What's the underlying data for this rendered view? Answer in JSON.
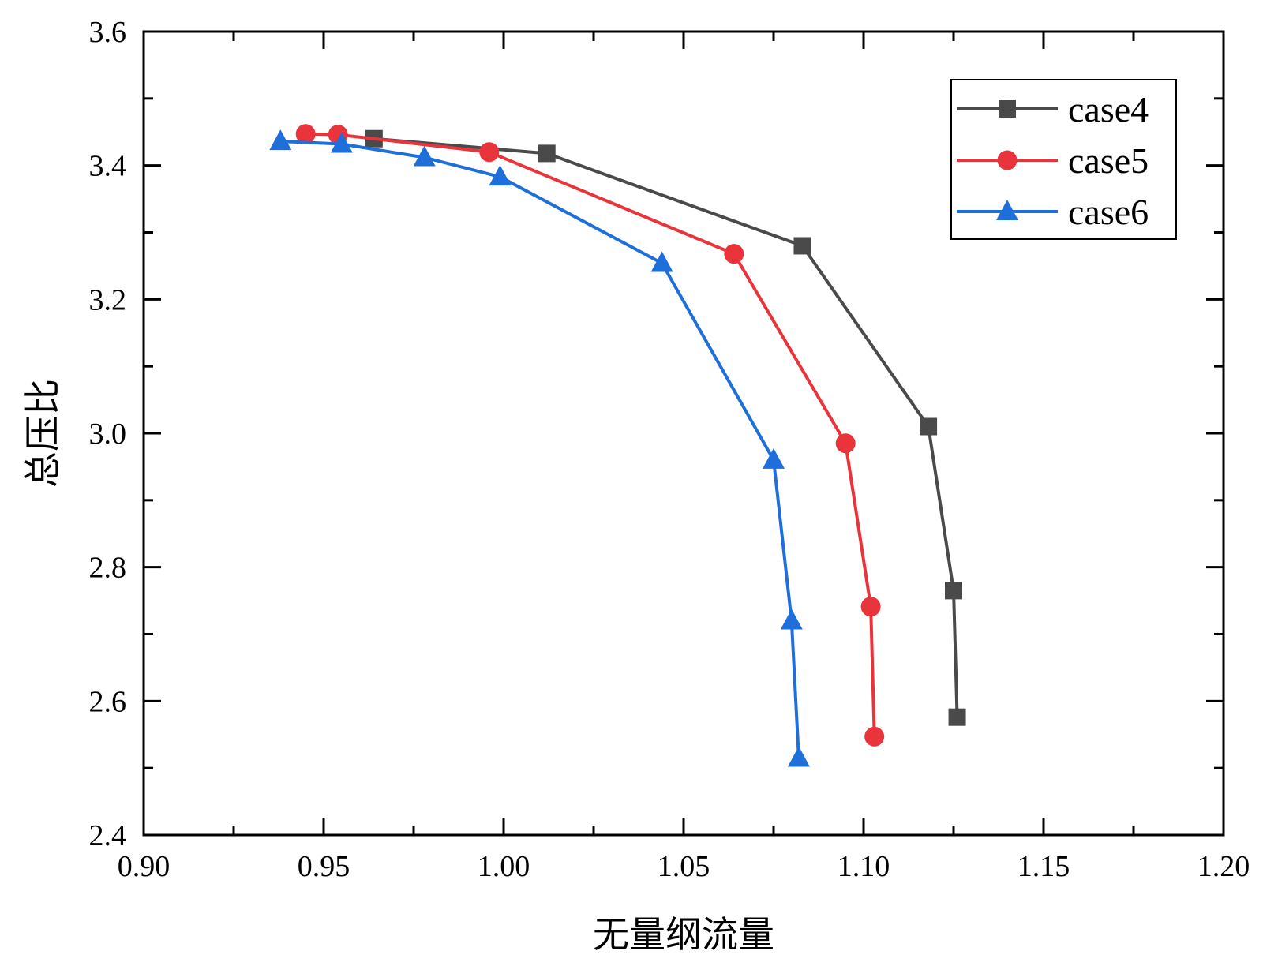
{
  "chart_data": {
    "type": "line",
    "xlabel": "无量纲流量",
    "ylabel": "总压比",
    "xlim": [
      0.9,
      1.2
    ],
    "ylim": [
      2.4,
      3.6
    ],
    "x_ticks": [
      "0.90",
      "0.95",
      "1.00",
      "1.05",
      "1.10",
      "1.15",
      "1.20"
    ],
    "y_ticks": [
      "2.4",
      "2.6",
      "2.8",
      "3.0",
      "3.2",
      "3.4",
      "3.6"
    ],
    "grid": false,
    "legend_position": "top-right",
    "series": [
      {
        "name": "case4",
        "color": "#4a4a4a",
        "marker": "square",
        "points": [
          {
            "x": 0.964,
            "y": 3.44
          },
          {
            "x": 1.012,
            "y": 3.418
          },
          {
            "x": 1.083,
            "y": 3.28
          },
          {
            "x": 1.118,
            "y": 3.01
          },
          {
            "x": 1.125,
            "y": 2.765
          },
          {
            "x": 1.126,
            "y": 2.576
          }
        ]
      },
      {
        "name": "case5",
        "color": "#e8343a",
        "marker": "circle",
        "points": [
          {
            "x": 0.945,
            "y": 3.447
          },
          {
            "x": 0.954,
            "y": 3.446
          },
          {
            "x": 0.996,
            "y": 3.42
          },
          {
            "x": 1.064,
            "y": 3.268
          },
          {
            "x": 1.095,
            "y": 2.985
          },
          {
            "x": 1.102,
            "y": 2.741
          },
          {
            "x": 1.103,
            "y": 2.547
          }
        ]
      },
      {
        "name": "case6",
        "color": "#1e6fd9",
        "marker": "triangle",
        "points": [
          {
            "x": 0.938,
            "y": 3.436
          },
          {
            "x": 0.955,
            "y": 3.432
          },
          {
            "x": 0.978,
            "y": 3.412
          },
          {
            "x": 0.999,
            "y": 3.383
          },
          {
            "x": 1.044,
            "y": 3.254
          },
          {
            "x": 1.075,
            "y": 2.96
          },
          {
            "x": 1.08,
            "y": 2.72
          },
          {
            "x": 1.082,
            "y": 2.515
          }
        ]
      }
    ]
  }
}
